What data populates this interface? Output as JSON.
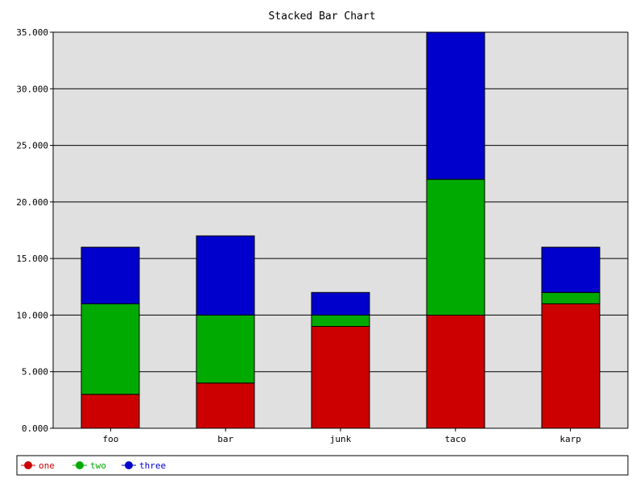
{
  "chart_data": {
    "type": "bar",
    "stacked": true,
    "title": "Stacked Bar Chart",
    "xlabel": "",
    "ylabel": "",
    "categories": [
      "foo",
      "bar",
      "junk",
      "taco",
      "karp"
    ],
    "series": [
      {
        "name": "one",
        "color": "#cc0000",
        "values": [
          3,
          4,
          9,
          10,
          11
        ]
      },
      {
        "name": "two",
        "color": "#00aa00",
        "values": [
          8,
          6,
          1,
          12,
          1
        ]
      },
      {
        "name": "three",
        "color": "#0000cc",
        "values": [
          5,
          7,
          2,
          13,
          4
        ]
      }
    ],
    "ylim": [
      0,
      35
    ],
    "yticks": [
      "0.000",
      "5.000",
      "10.000",
      "15.000",
      "20.000",
      "25.000",
      "30.000",
      "35.000"
    ],
    "grid": "horizontal",
    "plot_background": "#e0e0e0",
    "legend_position": "bottom"
  }
}
